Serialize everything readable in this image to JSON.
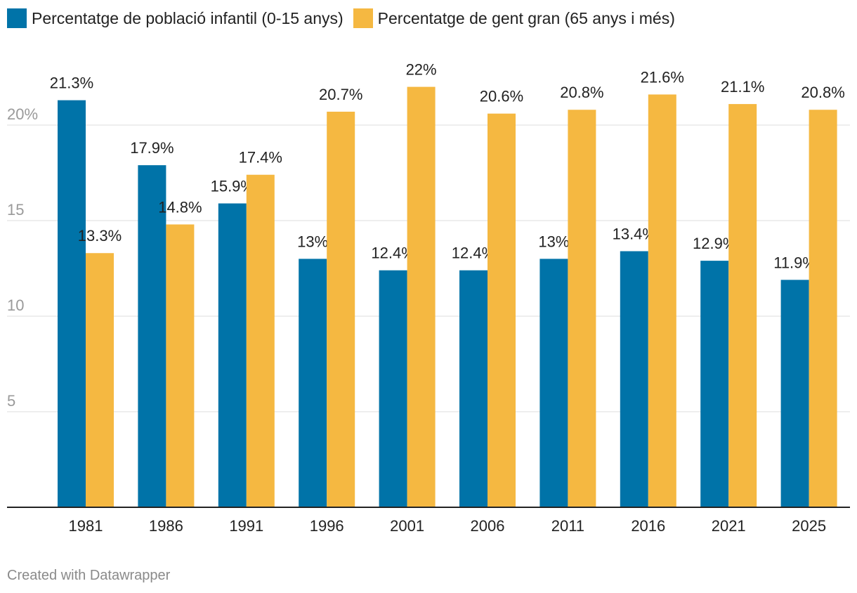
{
  "chart_data": {
    "type": "bar",
    "title": "",
    "xlabel": "",
    "ylabel": "",
    "ylim": [
      0,
      24
    ],
    "yticks": [
      5,
      10,
      15,
      20
    ],
    "ytick_labels": [
      "5",
      "10",
      "15",
      "20%"
    ],
    "grid": true,
    "legend_position": "top-left",
    "categories": [
      "1981",
      "1986",
      "1991",
      "1996",
      "2001",
      "2006",
      "2011",
      "2016",
      "2021",
      "2025"
    ],
    "series": [
      {
        "name": "Percentatge de població infantil (0-15 anys)",
        "color": "#0073a8",
        "values": [
          21.3,
          17.9,
          15.9,
          13,
          12.4,
          12.4,
          13,
          13.4,
          12.9,
          11.9
        ],
        "labels": [
          "21.3%",
          "17.9%",
          "15.9%",
          "13%",
          "12.4%",
          "12.4%",
          "13%",
          "13.4%",
          "12.9%",
          "11.9%"
        ]
      },
      {
        "name": "Percentatge de gent gran (65 anys i més)",
        "color": "#f5b841",
        "values": [
          13.3,
          14.8,
          17.4,
          20.7,
          22,
          20.6,
          20.8,
          21.6,
          21.1,
          20.8
        ],
        "labels": [
          "13.3%",
          "14.8%",
          "17.4%",
          "20.7%",
          "22%",
          "20.6%",
          "20.8%",
          "21.6%",
          "21.1%",
          "20.8%"
        ]
      }
    ]
  },
  "footer": {
    "credit": "Created with Datawrapper"
  }
}
